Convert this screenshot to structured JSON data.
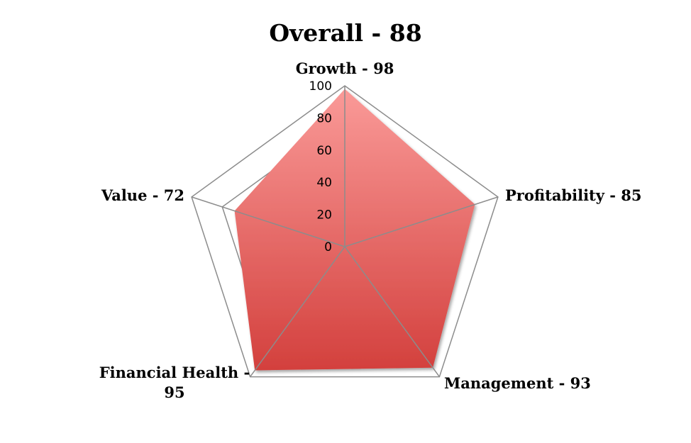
{
  "chart_data": {
    "type": "radar",
    "title": "Overall - 88",
    "axes": [
      {
        "name": "Growth",
        "label": "Growth - 98",
        "value": 98
      },
      {
        "name": "Profitability",
        "label": "Profitability - 85",
        "value": 85
      },
      {
        "name": "Management",
        "label": "Management - 93",
        "value": 93
      },
      {
        "name": "Financial Health",
        "label_lines": [
          "Financial Health -",
          "95"
        ],
        "value": 95
      },
      {
        "name": "Value",
        "label": "Value - 72",
        "value": 72
      }
    ],
    "r_ticks": [
      "0",
      "20",
      "40",
      "60",
      "80",
      "100"
    ],
    "rlim": [
      0,
      100
    ],
    "grid_levels": [
      80,
      100
    ],
    "series": [
      {
        "values": [
          98,
          85,
          93,
          95,
          72
        ]
      }
    ],
    "colors": {
      "fill_top": "#fa9a98",
      "fill_bottom": "#d3403d",
      "grid": "#8c8c8c",
      "spoke": "#8c8c8c"
    },
    "legend": false
  }
}
